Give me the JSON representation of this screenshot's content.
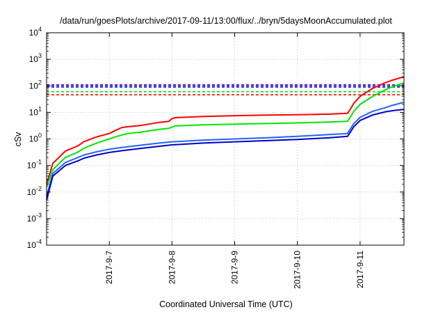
{
  "chart_data": {
    "type": "line",
    "title": "/data/run/goesPlots/archive/2017-09-11/13:00/flux/../bryn/5daysMoonAccumulated.plot",
    "xlabel": "Coordinated Universal Time (UTC)",
    "ylabel": "cSv",
    "y_scale": "log",
    "ylim": [
      0.0001,
      10000
    ],
    "xlim": [
      0,
      5.7
    ],
    "grid": true,
    "legend": "none",
    "x_ticks": [
      {
        "value": 1,
        "label": "2017-9-7"
      },
      {
        "value": 2,
        "label": "2017-9-8"
      },
      {
        "value": 3,
        "label": "2017-9-9"
      },
      {
        "value": 4,
        "label": "2017-9-10"
      },
      {
        "value": 5,
        "label": "2017-9-11"
      }
    ],
    "y_ticks": [
      {
        "value": 0.0001,
        "base": "10",
        "exp": "-4"
      },
      {
        "value": 0.001,
        "base": "10",
        "exp": "-3"
      },
      {
        "value": 0.01,
        "base": "10",
        "exp": "-2"
      },
      {
        "value": 0.1,
        "base": "10",
        "exp": "-1"
      },
      {
        "value": 1,
        "base": "10",
        "exp": "0"
      },
      {
        "value": 10,
        "base": "10",
        "exp": "1"
      },
      {
        "value": 100,
        "base": "10",
        "exp": "2"
      },
      {
        "value": 1000,
        "base": "10",
        "exp": "3"
      },
      {
        "value": 10000,
        "base": "10",
        "exp": "4"
      }
    ],
    "series": [
      {
        "color": "#ff0000",
        "x": [
          0,
          0.1,
          0.3,
          0.5,
          0.6,
          0.8,
          1.0,
          1.1,
          1.2,
          1.3,
          1.5,
          1.8,
          1.95,
          2.0,
          2.05,
          2.5,
          3.0,
          3.5,
          4.0,
          4.5,
          4.8,
          4.85,
          4.9,
          5.0,
          5.2,
          5.4,
          5.5,
          5.7
        ],
        "values": [
          0.02,
          0.12,
          0.35,
          0.55,
          0.8,
          1.2,
          1.6,
          2.1,
          2.7,
          2.9,
          3.2,
          4.2,
          4.6,
          5.8,
          6.3,
          7.0,
          7.5,
          7.9,
          8.2,
          8.6,
          9.2,
          14,
          22,
          40,
          80,
          130,
          160,
          220
        ]
      },
      {
        "color": "#00e600",
        "x": [
          0,
          0.1,
          0.3,
          0.5,
          0.6,
          0.8,
          1.0,
          1.1,
          1.2,
          1.3,
          1.5,
          1.8,
          1.95,
          2.0,
          2.05,
          2.5,
          3.0,
          3.5,
          4.0,
          4.5,
          4.8,
          4.85,
          4.9,
          5.0,
          5.2,
          5.4,
          5.5,
          5.7
        ],
        "values": [
          0.015,
          0.07,
          0.2,
          0.32,
          0.45,
          0.7,
          1.0,
          1.2,
          1.4,
          1.6,
          1.8,
          2.3,
          2.5,
          2.8,
          3.1,
          3.4,
          3.6,
          3.8,
          4.0,
          4.3,
          4.6,
          7,
          11,
          20,
          40,
          70,
          90,
          130
        ]
      },
      {
        "color": "#1e64ff",
        "x": [
          0,
          0.1,
          0.3,
          0.5,
          0.6,
          0.8,
          1.0,
          1.2,
          1.5,
          1.8,
          2.0,
          2.5,
          3.0,
          3.5,
          4.0,
          4.5,
          4.8,
          4.85,
          4.9,
          5.0,
          5.2,
          5.4,
          5.5,
          5.7
        ],
        "values": [
          0.007,
          0.05,
          0.13,
          0.2,
          0.25,
          0.33,
          0.41,
          0.48,
          0.58,
          0.7,
          0.78,
          0.9,
          1.0,
          1.1,
          1.25,
          1.45,
          1.6,
          2.5,
          3.8,
          6.5,
          11,
          15,
          18,
          24
        ]
      },
      {
        "color": "#0000c8",
        "x": [
          0,
          0.1,
          0.3,
          0.5,
          0.6,
          0.8,
          1.0,
          1.2,
          1.5,
          1.8,
          2.0,
          2.5,
          3.0,
          3.5,
          4.0,
          4.5,
          4.8,
          4.85,
          4.9,
          5.0,
          5.2,
          5.4,
          5.5,
          5.7
        ],
        "values": [
          0.005,
          0.04,
          0.1,
          0.15,
          0.19,
          0.25,
          0.31,
          0.36,
          0.44,
          0.53,
          0.6,
          0.7,
          0.78,
          0.86,
          0.95,
          1.1,
          1.25,
          1.9,
          2.9,
          5,
          8,
          10.5,
          11.5,
          13
        ]
      }
    ],
    "reference_lines": [
      {
        "color": "#9400d3",
        "value": 110,
        "style": "dashed"
      },
      {
        "color": "#1e64ff",
        "value": 100,
        "style": "dashed"
      },
      {
        "color": "#0000c8",
        "value": 90,
        "style": "dashed"
      },
      {
        "color": "#00e600",
        "value": 60,
        "style": "dashed"
      },
      {
        "color": "#ff0000",
        "value": 46,
        "style": "dashed"
      }
    ]
  }
}
